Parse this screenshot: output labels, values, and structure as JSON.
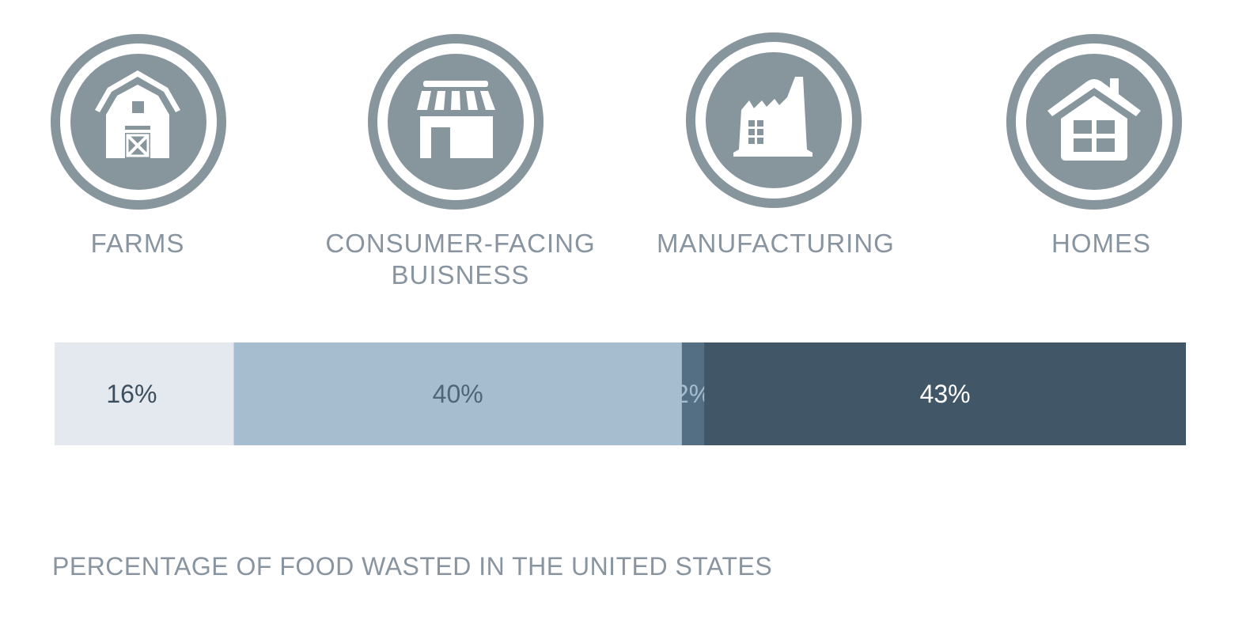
{
  "categories": [
    {
      "label": "FARMS",
      "icon": "barn-icon"
    },
    {
      "label_line1": "CONSUMER-FACING",
      "label_line2": "BUISNESS",
      "icon": "storefront-icon"
    },
    {
      "label": "MANUFACTURING",
      "icon": "factory-icon"
    },
    {
      "label": "HOMES",
      "icon": "house-icon"
    }
  ],
  "colors": {
    "icon_circle": "#87959d",
    "label_text": "#8895a0",
    "segments": [
      "#e3e9ef",
      "#a6bdcf",
      "#546f83",
      "#415666"
    ],
    "segment_text": [
      "#3c4f5e",
      "#4f6678",
      "#a6bdcf",
      "#ffffff"
    ]
  },
  "chart_data": {
    "type": "bar",
    "orientation": "horizontal-stacked",
    "categories": [
      "FARMS",
      "CONSUMER-FACING BUISNESS",
      "MANUFACTURING",
      "HOMES"
    ],
    "values": [
      16,
      40,
      2,
      43
    ],
    "value_labels": [
      "16%",
      "40%",
      "2%",
      "43%"
    ],
    "title": "PERCENTAGE OF FOOD WASTED IN THE UNITED STATES"
  }
}
